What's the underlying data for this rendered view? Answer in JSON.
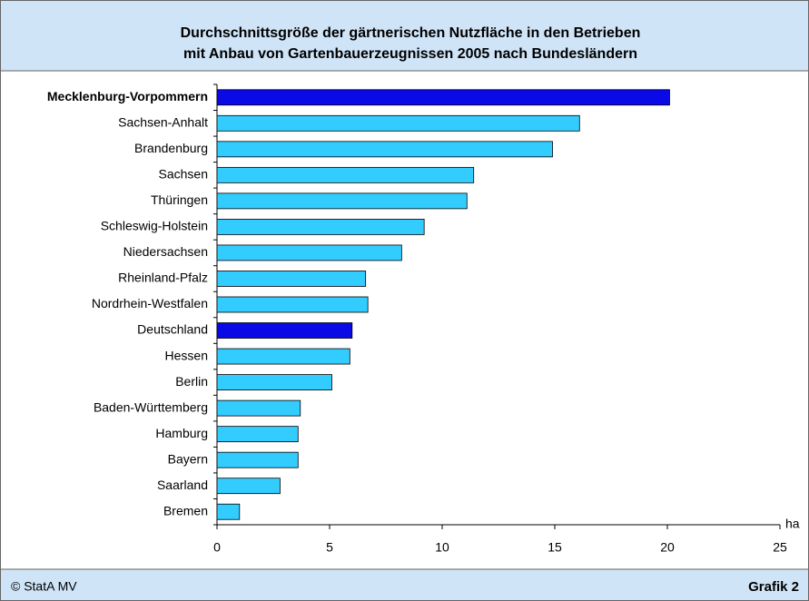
{
  "chart_data": {
    "type": "hbar",
    "title": [
      "Durchschnittsgröße der gärtnerischen Nutzfläche in den Betrieben",
      "mit Anbau von Gartenbauerzeugnissen 2005 nach Bundesländern"
    ],
    "categories": [
      "Mecklenburg-Vorpommern",
      "Sachsen-Anhalt",
      "Brandenburg",
      "Sachsen",
      "Thüringen",
      "Schleswig-Holstein",
      "Niedersachsen",
      "Rheinland-Pfalz",
      "Nordrhein-Westfalen",
      "Deutschland",
      "Hessen",
      "Berlin",
      "Baden-Württemberg",
      "Hamburg",
      "Bayern",
      "Saarland",
      "Bremen"
    ],
    "values": [
      20.1,
      16.1,
      14.9,
      11.4,
      11.1,
      9.2,
      8.2,
      6.6,
      6.7,
      6.0,
      5.9,
      5.1,
      3.7,
      3.6,
      3.6,
      2.8,
      1.0
    ],
    "colors": [
      "#0a0ae6",
      "#33ccff",
      "#33ccff",
      "#33ccff",
      "#33ccff",
      "#33ccff",
      "#33ccff",
      "#33ccff",
      "#33ccff",
      "#0a0ae6",
      "#33ccff",
      "#33ccff",
      "#33ccff",
      "#33ccff",
      "#33ccff",
      "#33ccff",
      "#33ccff"
    ],
    "xlabel": "ha",
    "xlim": [
      0,
      25
    ],
    "xticks": [
      0,
      5,
      10,
      15,
      20,
      25
    ]
  },
  "footer": {
    "source": "© StatA MV",
    "label": "Grafik 2"
  }
}
